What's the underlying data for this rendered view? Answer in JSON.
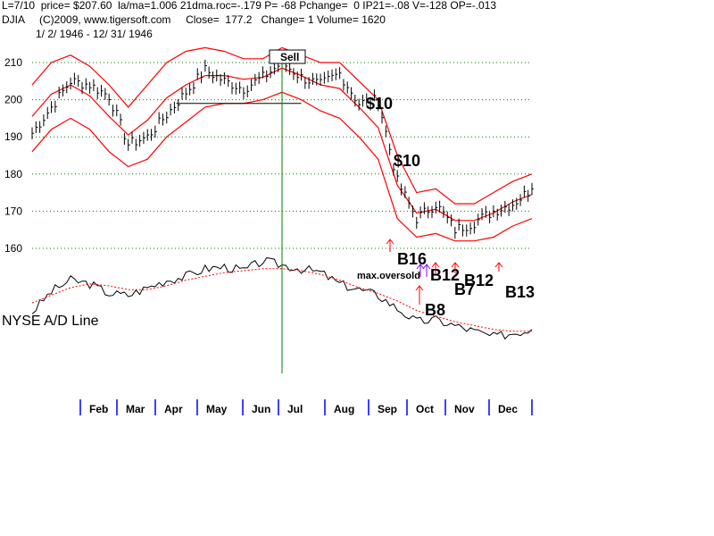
{
  "header": {
    "line1": "L=7/10  price= $207.60  la/ma=1.006 21dma.roc=-.179 P= -68 Pchange=  0 IP21=-.08 V=-128 OP=-.013",
    "line2": "DJIA     (C)2009, www.tigersoft.com     Close=  177.2   Change= 1 Volume= 1620",
    "line3": "1/ 2/ 1946 - 12/ 31/ 1946"
  },
  "colors": {
    "price": "#000000",
    "band": "#ff0000",
    "grid": "#008000",
    "signal_line": "#008000",
    "month_tick": "#0000ff",
    "arrow_red": "#ff0000",
    "arrow_purple": "#8000ff",
    "ad_ma": "#ff0000"
  },
  "chart_data": {
    "type": "line",
    "title": "DJIA",
    "period": "1/2/1946 - 12/31/1946",
    "xlabel": "",
    "ylabel": "",
    "ylim": [
      159,
      212
    ],
    "yticks": [
      160,
      170,
      180,
      190,
      200,
      210
    ],
    "grid": true,
    "months": [
      "Feb",
      "Mar",
      "Apr",
      "May",
      "Jun",
      "Jul",
      "Aug",
      "Sep",
      "Oct",
      "Nov",
      "Dec"
    ],
    "x_weeks": [
      0,
      2,
      4,
      6,
      8,
      10,
      12,
      14,
      16,
      18,
      20,
      22,
      24,
      26,
      28,
      30,
      32,
      34,
      36,
      38,
      40,
      42,
      44,
      46,
      48,
      50,
      52
    ],
    "series": [
      {
        "name": "DJIA",
        "values": [
          191,
          198,
          205,
          204,
          201,
          188,
          190,
          196,
          202,
          208,
          205,
          203,
          206,
          210,
          206,
          204,
          207,
          199,
          200,
          178,
          168,
          172,
          165,
          167,
          170,
          172,
          176
        ]
      },
      {
        "name": "upper band",
        "values": [
          204,
          210,
          212,
          209,
          204,
          198,
          204,
          210,
          213,
          214,
          213,
          211,
          211,
          214,
          212,
          210,
          210,
          205,
          200,
          185,
          175,
          176,
          172,
          172,
          175,
          178,
          180
        ]
      },
      {
        "name": "lower band",
        "values": [
          186,
          192,
          195,
          192,
          186,
          182,
          184,
          190,
          194,
          198,
          199,
          199,
          200,
          202,
          200,
          197,
          195,
          190,
          184,
          168,
          163,
          164,
          162,
          162,
          163,
          166,
          168
        ]
      }
    ],
    "horizontal_lines": [
      199,
      199
    ],
    "ad_line": {
      "label": "NYSE A/D Line",
      "values": [
        40,
        62,
        74,
        70,
        60,
        58,
        66,
        74,
        78,
        86,
        88,
        84,
        94,
        90,
        86,
        82,
        70,
        64,
        58,
        44,
        30,
        32,
        26,
        20,
        14,
        18,
        22
      ],
      "ma_values": [
        50,
        58,
        66,
        70,
        68,
        64,
        64,
        68,
        74,
        78,
        82,
        84,
        86,
        86,
        84,
        80,
        74,
        66,
        60,
        52,
        42,
        36,
        30,
        26,
        22,
        20,
        20
      ]
    },
    "annotations": [
      {
        "text": "Sell",
        "week": 25.5
      },
      {
        "text": "$10",
        "week": 34.5
      },
      {
        "text": "$10",
        "week": 38
      },
      {
        "text": "B16",
        "week": 38.5
      },
      {
        "text": "max.oversold",
        "week": 35
      },
      {
        "text": "B12",
        "week": 41.5
      },
      {
        "text": "B7",
        "week": 45
      },
      {
        "text": "B12",
        "week": 46.5
      },
      {
        "text": "B13",
        "week": 50
      },
      {
        "text": "B8",
        "week": 41
      }
    ],
    "signal_week": 26
  }
}
